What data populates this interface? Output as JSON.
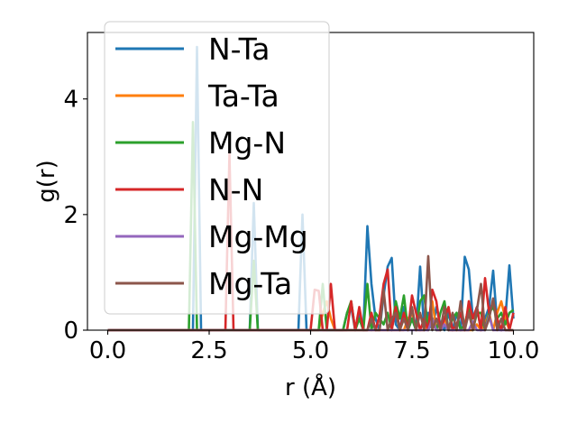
{
  "chart_data": {
    "type": "line",
    "title": "",
    "xlabel": "r (Å)",
    "ylabel": "g(r)",
    "xlim": [
      -0.5,
      10.5
    ],
    "ylim": [
      0,
      5.15
    ],
    "xticks": [
      "0.0",
      "2.5",
      "5.0",
      "7.5",
      "10.0"
    ],
    "xtick_values": [
      0,
      2.5,
      5,
      7.5,
      10
    ],
    "yticks": [
      "0",
      "2",
      "4"
    ],
    "ytick_values": [
      0,
      2,
      4
    ],
    "grid": false,
    "legend_position": "upper-left",
    "x_start": 0.0,
    "x_step": 0.1,
    "series": [
      {
        "name": "N-Ta",
        "color": "#1f77b4",
        "values": [
          0,
          0,
          0,
          0,
          0,
          0,
          0,
          0,
          0,
          0,
          0,
          0,
          0,
          0,
          0,
          0,
          0,
          0,
          0,
          0,
          0,
          0,
          4.9,
          0,
          0,
          0,
          0,
          0,
          0,
          0,
          0,
          0,
          0,
          0,
          0,
          0,
          2.2,
          0,
          0,
          0,
          0,
          0,
          0,
          0,
          0,
          0,
          0,
          0,
          2.0,
          0,
          0,
          0,
          0,
          0,
          0,
          0,
          0,
          0,
          0,
          0.3,
          0.4,
          0,
          0.3,
          0,
          1.8,
          0.8,
          0.2,
          0,
          0.6,
          1.1,
          1.25,
          0.1,
          0,
          0.4,
          0,
          0.2,
          0,
          1.1,
          0,
          0.3,
          0,
          0.4,
          0.1,
          0,
          0.3,
          0,
          0.3,
          0,
          1.27,
          1.05,
          0.2,
          0.4,
          0,
          0.2,
          0.4,
          1.03,
          0.1,
          0,
          0.2,
          1.12,
          0.2
        ]
      },
      {
        "name": "Ta-Ta",
        "color": "#ff7f0e",
        "values": [
          0,
          0,
          0,
          0,
          0,
          0,
          0,
          0,
          0,
          0,
          0,
          0,
          0,
          0,
          0,
          0,
          0,
          0,
          0,
          0,
          0,
          0,
          0,
          0,
          0,
          0,
          0,
          0,
          0,
          0,
          0,
          0,
          0,
          0,
          0,
          0,
          0,
          0,
          0,
          0,
          0,
          0,
          0,
          0,
          0,
          0,
          0,
          0,
          0,
          0,
          0,
          0,
          0,
          0.3,
          0.5,
          0.2,
          0,
          0,
          0,
          0,
          0,
          0,
          0,
          0,
          0,
          0,
          0,
          0,
          0,
          0,
          0,
          0,
          0,
          0,
          0.2,
          0.3,
          0,
          0,
          0,
          0.1,
          0.5,
          0,
          0,
          0.2,
          0,
          0,
          0,
          0,
          0,
          0,
          0,
          0.1,
          0,
          0.1,
          0.3,
          0,
          0.3,
          0.5,
          0.2,
          0,
          0
        ]
      },
      {
        "name": "Mg-N",
        "color": "#2ca02c",
        "values": [
          0,
          0,
          0,
          0,
          0,
          0,
          0,
          0,
          0,
          0,
          0,
          0,
          0,
          0,
          0,
          0,
          0,
          0,
          0,
          0,
          0,
          3.6,
          0,
          0,
          0,
          0,
          0,
          0,
          0,
          0,
          0,
          0,
          0,
          0,
          0,
          0,
          1.2,
          0,
          0,
          0,
          0,
          0,
          0,
          0,
          0,
          0,
          0,
          0,
          0,
          0,
          0,
          0,
          0,
          0.8,
          0,
          0,
          0,
          0,
          0,
          0.3,
          0.5,
          0,
          0.2,
          0,
          0.8,
          0,
          0.3,
          0.2,
          0.1,
          0.3,
          0,
          0.5,
          0.2,
          0.6,
          0,
          0.2,
          0,
          0.5,
          0.6,
          0,
          0.2,
          0,
          0.3,
          0.5,
          0,
          0.2,
          0.3,
          0,
          0.1,
          0.4,
          0,
          0.3,
          0.3,
          0,
          0.3,
          0.4,
          0.2,
          0.3,
          0.1,
          0.3,
          0.35
        ]
      },
      {
        "name": "N-N",
        "color": "#d62728",
        "values": [
          0,
          0,
          0,
          0,
          0,
          0,
          0,
          0,
          0,
          0,
          0,
          0,
          0,
          0,
          0,
          0,
          0,
          0,
          0,
          0,
          0,
          0,
          0,
          0,
          0,
          0,
          0,
          0,
          0,
          0,
          3.05,
          0,
          0,
          0,
          0,
          0,
          0,
          0,
          0,
          0,
          0,
          0,
          0,
          0,
          0,
          0,
          0,
          0,
          0,
          0,
          0,
          0.7,
          0.68,
          0,
          0,
          0.8,
          0,
          0,
          0,
          0,
          0.5,
          0,
          0.4,
          0,
          0,
          0.3,
          0,
          0.25,
          0.8,
          1.05,
          0,
          0.4,
          0,
          0.3,
          0,
          0.6,
          0.3,
          0,
          0.2,
          0,
          0.7,
          0.5,
          0,
          0.2,
          0.4,
          0,
          0.1,
          0.3,
          0,
          0.5,
          0.2,
          0.4,
          0,
          0.9,
          0.3,
          0.5,
          0.2,
          0,
          0.4,
          0,
          0.3
        ]
      },
      {
        "name": "Mg-Mg",
        "color": "#9467bd",
        "values": [
          0,
          0,
          0,
          0,
          0,
          0,
          0,
          0,
          0,
          0,
          0,
          0,
          0,
          0,
          0,
          0,
          0,
          0,
          0,
          0,
          0,
          0,
          0,
          0,
          0,
          0,
          0,
          0,
          0,
          0,
          0,
          0,
          0,
          0,
          0,
          0,
          0,
          0,
          0,
          0,
          0,
          0,
          0,
          0,
          0,
          0,
          0,
          0,
          0,
          0,
          0,
          0,
          0,
          0,
          0,
          0,
          0,
          0,
          0,
          0,
          0,
          0,
          0,
          0,
          0,
          0,
          0,
          0,
          0,
          0,
          0,
          0,
          0,
          0,
          0,
          0,
          0,
          0,
          0,
          0,
          0.2,
          0,
          0,
          0.1,
          0,
          0,
          0,
          0,
          0,
          0,
          0.15,
          0,
          0,
          0,
          0.25,
          0,
          0,
          0,
          0,
          0,
          0
        ]
      },
      {
        "name": "Mg-Ta",
        "color": "#8c564b",
        "values": [
          0,
          0,
          0,
          0,
          0,
          0,
          0,
          0,
          0,
          0,
          0,
          0,
          0,
          0,
          0,
          0,
          0,
          0,
          0,
          0,
          0,
          0,
          0,
          0,
          0,
          0,
          0,
          0,
          0,
          0,
          0,
          0,
          0,
          0,
          0,
          0,
          0,
          0,
          0,
          0,
          0,
          0,
          0,
          0,
          0,
          0,
          0,
          0,
          0,
          0,
          0,
          0,
          0,
          0,
          0,
          0,
          0,
          0,
          0,
          0,
          0,
          0,
          0,
          0,
          0,
          0.2,
          0,
          0,
          0.7,
          0,
          0.2,
          0.3,
          0,
          0.2,
          0,
          0.4,
          0,
          0.3,
          0,
          1.28,
          0,
          0.2,
          0,
          0.4,
          0,
          0.3,
          0,
          0.5,
          0,
          0.3,
          0,
          0.35,
          0.8,
          0,
          0.2,
          0.55,
          0,
          0.2,
          0,
          0,
          0
        ]
      }
    ]
  }
}
